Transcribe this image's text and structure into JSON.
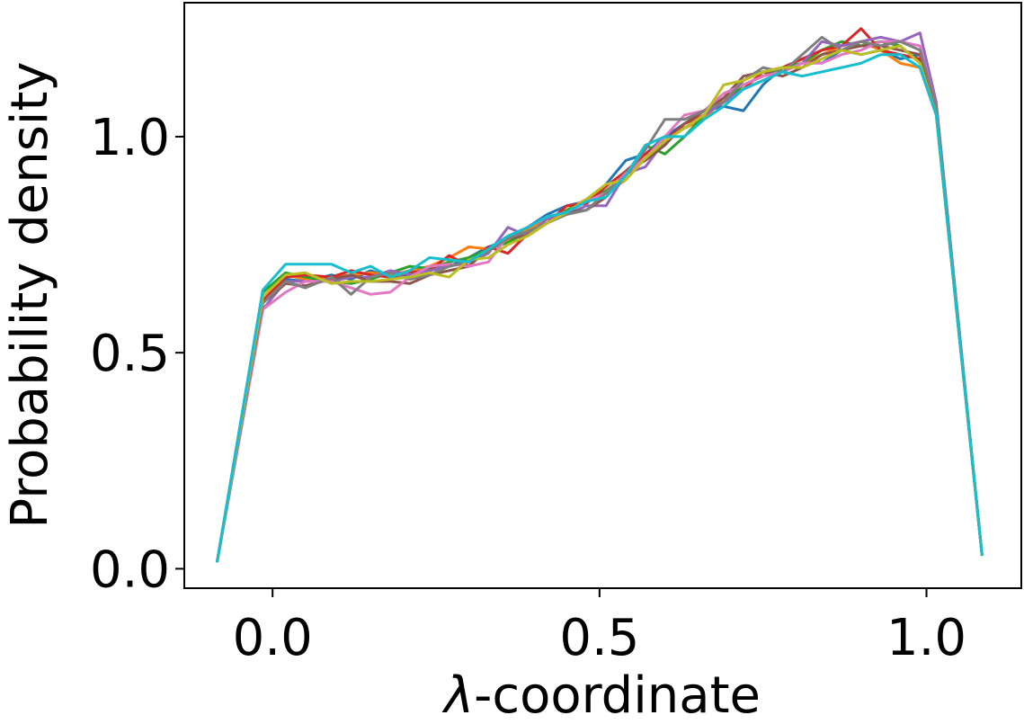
{
  "chart_data": {
    "type": "line",
    "xlabel_prefix": "λ",
    "xlabel_suffix": "-coordinate",
    "ylabel": "Probability density",
    "xlim": [
      -0.135,
      1.145
    ],
    "ylim": [
      -0.045,
      1.31
    ],
    "xticks": [
      0.0,
      0.5,
      1.0
    ],
    "xtick_labels": [
      "0.0",
      "0.5",
      "1.0"
    ],
    "yticks": [
      0.0,
      0.5,
      1.0
    ],
    "ytick_labels": [
      "0.0",
      "0.5",
      "1.0"
    ],
    "grid": false,
    "x": [
      -0.085,
      -0.015,
      0.02,
      0.05,
      0.09,
      0.12,
      0.15,
      0.18,
      0.21,
      0.24,
      0.27,
      0.3,
      0.33,
      0.36,
      0.39,
      0.42,
      0.45,
      0.48,
      0.51,
      0.54,
      0.57,
      0.6,
      0.63,
      0.66,
      0.69,
      0.72,
      0.75,
      0.78,
      0.81,
      0.84,
      0.87,
      0.9,
      0.93,
      0.96,
      0.99,
      1.015,
      1.085
    ],
    "series": [
      {
        "color": "#1f77b4",
        "values": [
          0.015,
          0.62,
          0.67,
          0.665,
          0.68,
          0.67,
          0.69,
          0.675,
          0.68,
          0.7,
          0.7,
          0.72,
          0.745,
          0.76,
          0.79,
          0.82,
          0.84,
          0.85,
          0.89,
          0.945,
          0.96,
          1.0,
          1.03,
          1.06,
          1.07,
          1.06,
          1.12,
          1.16,
          1.18,
          1.17,
          1.2,
          1.19,
          1.2,
          1.18,
          1.19,
          1.06,
          0.03
        ]
      },
      {
        "color": "#ff7f0e",
        "values": [
          0.015,
          0.63,
          0.68,
          0.67,
          0.675,
          0.68,
          0.685,
          0.68,
          0.69,
          0.7,
          0.72,
          0.745,
          0.74,
          0.76,
          0.785,
          0.81,
          0.83,
          0.855,
          0.87,
          0.9,
          0.95,
          0.99,
          1.02,
          1.04,
          1.09,
          1.11,
          1.13,
          1.15,
          1.17,
          1.19,
          1.21,
          1.22,
          1.2,
          1.17,
          1.16,
          1.05,
          0.03
        ]
      },
      {
        "color": "#2ca02c",
        "values": [
          0.015,
          0.64,
          0.685,
          0.675,
          0.665,
          0.66,
          0.67,
          0.685,
          0.7,
          0.695,
          0.71,
          0.72,
          0.74,
          0.755,
          0.78,
          0.8,
          0.83,
          0.85,
          0.875,
          0.91,
          0.98,
          0.96,
          1.0,
          1.05,
          1.08,
          1.12,
          1.14,
          1.16,
          1.17,
          1.2,
          1.22,
          1.21,
          1.22,
          1.21,
          1.17,
          1.05,
          0.03
        ]
      },
      {
        "color": "#d62728",
        "values": [
          0.015,
          0.62,
          0.675,
          0.68,
          0.675,
          0.69,
          0.68,
          0.675,
          0.685,
          0.69,
          0.725,
          0.7,
          0.745,
          0.73,
          0.775,
          0.8,
          0.84,
          0.845,
          0.885,
          0.92,
          0.96,
          0.99,
          1.03,
          1.05,
          1.08,
          1.11,
          1.15,
          1.16,
          1.18,
          1.2,
          1.21,
          1.25,
          1.2,
          1.19,
          1.18,
          1.06,
          0.03
        ]
      },
      {
        "color": "#9467bd",
        "values": [
          0.015,
          0.6,
          0.665,
          0.665,
          0.665,
          0.675,
          0.675,
          0.69,
          0.68,
          0.69,
          0.7,
          0.71,
          0.73,
          0.79,
          0.77,
          0.81,
          0.82,
          0.84,
          0.84,
          0.915,
          0.93,
          0.99,
          1.02,
          1.05,
          1.08,
          1.11,
          1.13,
          1.15,
          1.17,
          1.22,
          1.21,
          1.22,
          1.23,
          1.22,
          1.24,
          1.08,
          0.03
        ]
      },
      {
        "color": "#8c564b",
        "values": [
          0.015,
          0.615,
          0.66,
          0.655,
          0.67,
          0.68,
          0.665,
          0.665,
          0.66,
          0.68,
          0.69,
          0.7,
          0.74,
          0.765,
          0.77,
          0.8,
          0.825,
          0.83,
          0.86,
          0.92,
          0.945,
          0.98,
          1.03,
          1.06,
          1.09,
          1.14,
          1.15,
          1.14,
          1.16,
          1.19,
          1.2,
          1.21,
          1.21,
          1.2,
          1.19,
          1.07,
          0.03
        ]
      },
      {
        "color": "#e377c2",
        "values": [
          0.015,
          0.6,
          0.64,
          0.665,
          0.665,
          0.65,
          0.635,
          0.64,
          0.675,
          0.7,
          0.705,
          0.7,
          0.71,
          0.77,
          0.79,
          0.815,
          0.825,
          0.85,
          0.87,
          0.915,
          0.95,
          1.0,
          1.05,
          1.06,
          1.1,
          1.12,
          1.14,
          1.15,
          1.17,
          1.17,
          1.19,
          1.2,
          1.22,
          1.22,
          1.21,
          1.07,
          0.03
        ]
      },
      {
        "color": "#7f7f7f",
        "values": [
          0.015,
          0.615,
          0.665,
          0.65,
          0.675,
          0.635,
          0.675,
          0.685,
          0.67,
          0.68,
          0.7,
          0.71,
          0.735,
          0.765,
          0.78,
          0.8,
          0.82,
          0.83,
          0.87,
          0.91,
          0.97,
          1.04,
          1.04,
          1.06,
          1.08,
          1.13,
          1.16,
          1.15,
          1.19,
          1.23,
          1.2,
          1.22,
          1.21,
          1.22,
          1.2,
          1.07,
          0.03
        ]
      },
      {
        "color": "#bcbd22",
        "values": [
          0.015,
          0.63,
          0.68,
          0.685,
          0.66,
          0.665,
          0.665,
          0.67,
          0.675,
          0.685,
          0.675,
          0.715,
          0.72,
          0.75,
          0.77,
          0.8,
          0.825,
          0.855,
          0.89,
          0.9,
          0.95,
          0.99,
          1.02,
          1.05,
          1.12,
          1.13,
          1.15,
          1.16,
          1.16,
          1.18,
          1.2,
          1.19,
          1.2,
          1.21,
          1.17,
          1.05,
          0.03
        ]
      },
      {
        "color": "#17becf",
        "values": [
          0.015,
          0.645,
          0.705,
          0.705,
          0.705,
          0.685,
          0.7,
          0.675,
          0.69,
          0.72,
          0.715,
          0.71,
          0.74,
          0.77,
          0.79,
          0.815,
          0.825,
          0.85,
          0.86,
          0.91,
          0.98,
          1.0,
          1.0,
          1.04,
          1.07,
          1.11,
          1.13,
          1.15,
          1.14,
          1.15,
          1.16,
          1.17,
          1.19,
          1.19,
          1.16,
          1.05,
          0.03
        ]
      }
    ]
  }
}
